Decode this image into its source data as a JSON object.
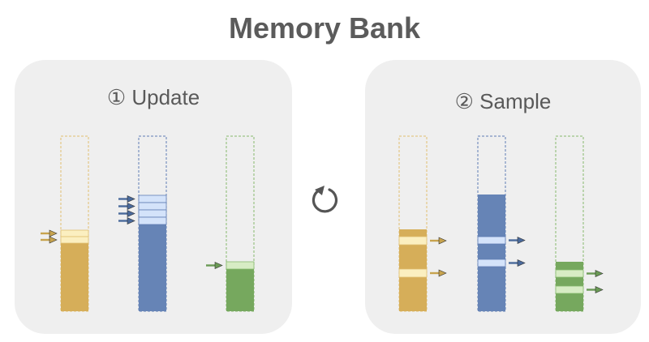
{
  "title": "Memory Bank",
  "panels": {
    "update": {
      "label": "① Update"
    },
    "sample": {
      "label": "② Sample"
    }
  },
  "icons": {
    "cycle": "refresh-icon"
  },
  "colors": {
    "yellow": "#d6ae59",
    "yellow_border": "#e0bf72",
    "yellow_slot": "#fbefc0",
    "blue": "#6684b6",
    "blue_border": "#5f7eb4",
    "blue_slot": "#d4e3fa",
    "green": "#76a85e",
    "green_border": "#87b96e",
    "green_slot": "#d7ecc4",
    "arrow_yellow": "#c7a34e",
    "arrow_blue": "#4a6a9c",
    "arrow_green": "#6a9a55",
    "cycle": "#555555"
  }
}
